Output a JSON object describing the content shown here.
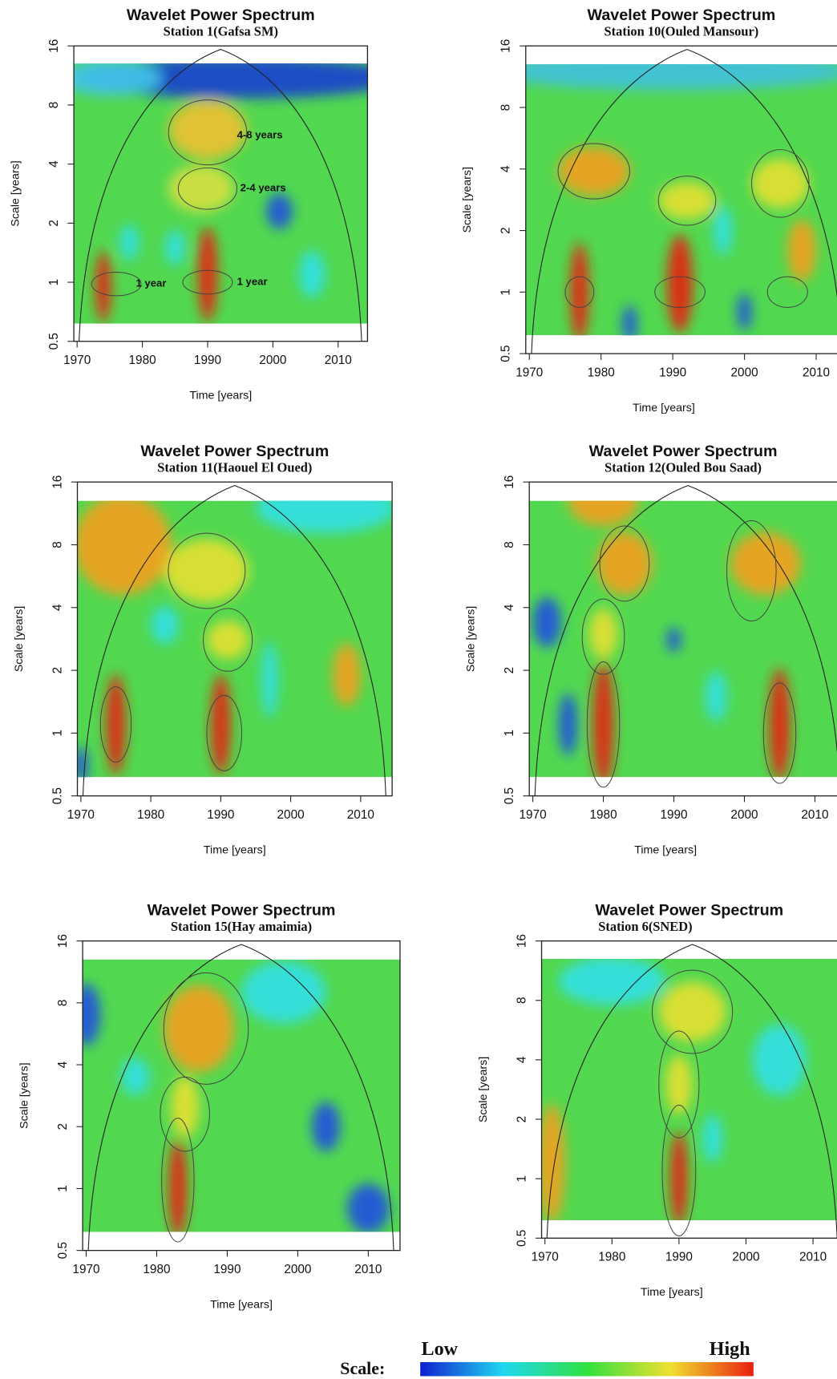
{
  "chart_data": [
    {
      "type": "heatmap",
      "title": "Wavelet Power Spectrum",
      "subtitle": "Station 1(Gafsa SM)",
      "xlabel": "Time [years]",
      "ylabel": "Scale [years]",
      "xlim": [
        1969.5,
        2014.5
      ],
      "xticks": [
        1970,
        1980,
        1990,
        2000,
        2010
      ],
      "ylim": [
        0.5,
        16
      ],
      "yticks": [
        0.5,
        1,
        2,
        4,
        8,
        16
      ],
      "log_scale_y": true,
      "annotations": [
        "4-8 years",
        "2-4 years",
        "1 year",
        "1 year"
      ]
    },
    {
      "type": "heatmap",
      "title": "Wavelet Power Spectrum",
      "subtitle": "Station 10(Ouled Mansour)",
      "xlabel": "Time [years]",
      "ylabel": "Scale [years]",
      "xlim": [
        1969.5,
        2014.5
      ],
      "xticks": [
        1970,
        1980,
        1990,
        2000,
        2010
      ],
      "ylim": [
        0.5,
        16
      ],
      "yticks": [
        0.5,
        1,
        2,
        4,
        8,
        16
      ],
      "log_scale_y": true
    },
    {
      "type": "heatmap",
      "title": "Wavelet Power Spectrum",
      "subtitle": "Station 11(Haouel El Oued)",
      "xlabel": "Time [years]",
      "ylabel": "Scale [years]",
      "xlim": [
        1969.5,
        2014.5
      ],
      "xticks": [
        1970,
        1980,
        1990,
        2000,
        2010
      ],
      "ylim": [
        0.5,
        16
      ],
      "yticks": [
        0.5,
        1,
        2,
        4,
        8,
        16
      ],
      "log_scale_y": true
    },
    {
      "type": "heatmap",
      "title": "Wavelet Power Spectrum",
      "subtitle": "Station 12(Ouled Bou Saad)",
      "xlabel": "Time [years]",
      "ylabel": "Scale [years]",
      "xlim": [
        1969.5,
        2014.5
      ],
      "xticks": [
        1970,
        1980,
        1990,
        2000,
        2010
      ],
      "ylim": [
        0.5,
        16
      ],
      "yticks": [
        0.5,
        1,
        2,
        4,
        8,
        16
      ],
      "log_scale_y": true
    },
    {
      "type": "heatmap",
      "title": "Wavelet Power Spectrum",
      "subtitle": "Station 15(Hay amaimia)",
      "xlabel": "Time [years]",
      "ylabel": "Scale [years]",
      "xlim": [
        1969.5,
        2014.5
      ],
      "xticks": [
        1970,
        1980,
        1990,
        2000,
        2010
      ],
      "ylim": [
        0.5,
        16
      ],
      "yticks": [
        0.5,
        1,
        2,
        4,
        8,
        16
      ],
      "log_scale_y": true
    },
    {
      "type": "heatmap",
      "title": "Wavelet Power Spectrum",
      "subtitle": "Station 6(SNED)",
      "xlabel": "Time [years]",
      "ylabel": "Scale [years]",
      "xlim": [
        1969.5,
        2014.5
      ],
      "xticks": [
        1970,
        1980,
        1990,
        2000,
        2010
      ],
      "ylim": [
        0.5,
        16
      ],
      "yticks": [
        0.5,
        1,
        2,
        4,
        8,
        16
      ],
      "log_scale_y": true
    }
  ],
  "colorbar": {
    "label": "Scale:",
    "low": "Low",
    "high": "High"
  }
}
